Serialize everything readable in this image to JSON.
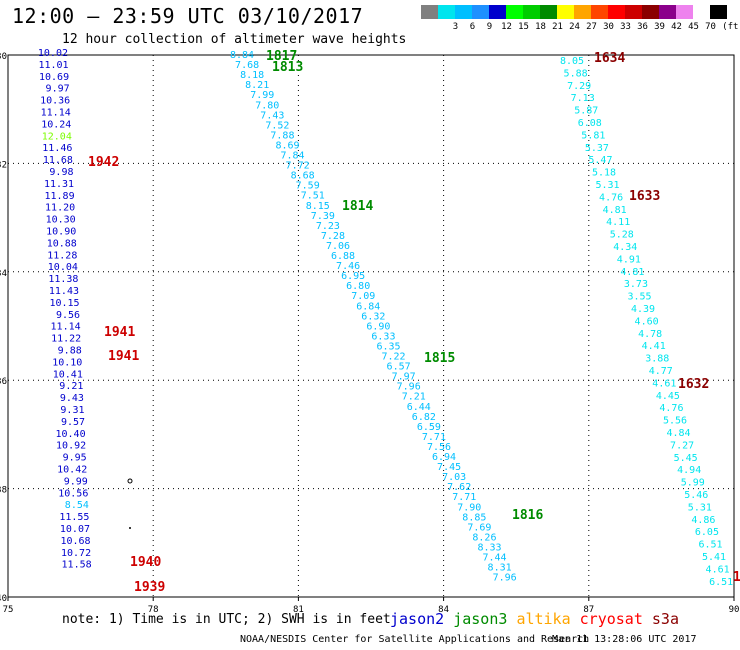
{
  "title": "12:00 – 23:59 UTC 03/10/2017",
  "subtitle": "12 hour collection of altimeter wave heights",
  "scale": {
    "unit": "(ft)",
    "colors": [
      "#808080",
      "#00e5ee",
      "#00bfff",
      "#1e90ff",
      "#0000cd",
      "#00ff00",
      "#00cd00",
      "#008b00",
      "#ffff00",
      "#ffa500",
      "#ff4500",
      "#ff0000",
      "#cd0000",
      "#8b0000",
      "#8b008b",
      "#ee82ee",
      "#ffffff",
      "#000000"
    ],
    "labels": [
      "",
      "3",
      "6",
      "9",
      "12",
      "15",
      "18",
      "21",
      "24",
      "27",
      "30",
      "33",
      "36",
      "39",
      "42",
      "45",
      "70"
    ]
  },
  "chart_data": {
    "type": "scatter",
    "xlim": [
      75,
      90
    ],
    "ylim": [
      -40,
      -30
    ],
    "x_ticks": [
      "75",
      "78",
      "81",
      "84",
      "87",
      "90"
    ],
    "y_ticks": [
      "-30",
      "-32",
      "-34",
      "-36",
      "-38",
      "-40"
    ],
    "grid": true,
    "series": [
      {
        "name": "jason2",
        "color": "#0000cd",
        "pass_labels": [],
        "points": [
          {
            "lon": 75.9,
            "lat": -30.1,
            "v": "10.02",
            "c": "#0000cd"
          },
          {
            "lon": 75.9,
            "lat": -30.3,
            "v": "11.01",
            "c": "#0000cd"
          },
          {
            "lon": 75.9,
            "lat": -30.5,
            "v": "10.69",
            "c": "#0000cd"
          },
          {
            "lon": 76.0,
            "lat": -30.7,
            "v": "9.97",
            "c": "#0000cd"
          },
          {
            "lon": 76.0,
            "lat": -30.9,
            "v": "10.36",
            "c": "#0000cd"
          },
          {
            "lon": 76.0,
            "lat": -31.1,
            "v": "11.14",
            "c": "#0000cd"
          },
          {
            "lon": 76.0,
            "lat": -31.3,
            "v": "10.24",
            "c": "#0000cd"
          },
          {
            "lon": 76.0,
            "lat": -31.5,
            "v": "12.04",
            "c": "#7cfc00"
          },
          {
            "lon": 76.1,
            "lat": -31.7,
            "v": "11.46",
            "c": "#0000cd"
          },
          {
            "lon": 76.1,
            "lat": -31.9,
            "v": "11.68",
            "c": "#0000cd"
          },
          {
            "lon": 76.1,
            "lat": -32.1,
            "v": "9.98",
            "c": "#0000cd"
          },
          {
            "lon": 76.1,
            "lat": -32.3,
            "v": "11.31",
            "c": "#0000cd"
          },
          {
            "lon": 76.1,
            "lat": -32.5,
            "v": "11.89",
            "c": "#0000cd"
          },
          {
            "lon": 76.2,
            "lat": -32.7,
            "v": "11.20",
            "c": "#0000cd"
          },
          {
            "lon": 76.2,
            "lat": -32.9,
            "v": "10.30",
            "c": "#0000cd"
          },
          {
            "lon": 76.2,
            "lat": -33.1,
            "v": "10.90",
            "c": "#0000cd"
          },
          {
            "lon": 76.2,
            "lat": -33.3,
            "v": "10.88",
            "c": "#0000cd"
          },
          {
            "lon": 76.2,
            "lat": -33.5,
            "v": "11.28",
            "c": "#0000cd"
          },
          {
            "lon": 76.3,
            "lat": -33.7,
            "v": "10.04",
            "c": "#0000cd"
          },
          {
            "lon": 76.3,
            "lat": -33.9,
            "v": "11.38",
            "c": "#0000cd"
          },
          {
            "lon": 76.3,
            "lat": -34.1,
            "v": "11.43",
            "c": "#0000cd"
          },
          {
            "lon": 76.3,
            "lat": -34.3,
            "v": "10.15",
            "c": "#0000cd"
          },
          {
            "lon": 76.3,
            "lat": -34.5,
            "v": "9.56",
            "c": "#0000cd"
          },
          {
            "lon": 76.4,
            "lat": -34.7,
            "v": "11.14",
            "c": "#0000cd"
          },
          {
            "lon": 76.4,
            "lat": -34.9,
            "v": "11.22",
            "c": "#0000cd"
          },
          {
            "lon": 76.4,
            "lat": -35.1,
            "v": "9.88",
            "c": "#0000cd"
          },
          {
            "lon": 76.4,
            "lat": -35.3,
            "v": "10.10",
            "c": "#0000cd"
          },
          {
            "lon": 76.4,
            "lat": -35.5,
            "v": "10.41",
            "c": "#0000cd"
          },
          {
            "lon": 76.5,
            "lat": -35.7,
            "v": "9.21",
            "c": "#0000cd"
          },
          {
            "lon": 76.5,
            "lat": -35.9,
            "v": "9.43",
            "c": "#0000cd"
          },
          {
            "lon": 76.5,
            "lat": -36.1,
            "v": "9.31",
            "c": "#0000cd"
          },
          {
            "lon": 76.5,
            "lat": -36.3,
            "v": "9.57",
            "c": "#0000cd"
          },
          {
            "lon": 76.5,
            "lat": -36.5,
            "v": "10.40",
            "c": "#0000cd"
          },
          {
            "lon": 76.6,
            "lat": -36.7,
            "v": "10.92",
            "c": "#0000cd"
          },
          {
            "lon": 76.6,
            "lat": -36.9,
            "v": "9.95",
            "c": "#0000cd"
          },
          {
            "lon": 76.6,
            "lat": -37.1,
            "v": "10.42",
            "c": "#0000cd"
          },
          {
            "lon": 76.6,
            "lat": -37.3,
            "v": "9.99",
            "c": "#0000cd"
          },
          {
            "lon": 76.6,
            "lat": -37.5,
            "v": "10.56",
            "c": "#0000cd"
          },
          {
            "lon": 76.7,
            "lat": -37.7,
            "v": "8.54",
            "c": "#00bfff"
          },
          {
            "lon": 76.7,
            "lat": -37.9,
            "v": "11.55",
            "c": "#0000cd"
          },
          {
            "lon": 76.7,
            "lat": -38.1,
            "v": "10.07",
            "c": "#0000cd"
          },
          {
            "lon": 76.7,
            "lat": -38.3,
            "v": "10.68",
            "c": "#0000cd"
          },
          {
            "lon": 76.7,
            "lat": -38.5,
            "v": "10.72",
            "c": "#0000cd"
          },
          {
            "lon": 76.8,
            "lat": -38.7,
            "v": "11.58",
            "c": "#0000cd"
          }
        ]
      },
      {
        "name": "jason3",
        "color": "#008b00",
        "pass_labels": [],
        "points": []
      },
      {
        "name": "altika",
        "color": "#ffa500",
        "pass_labels": [],
        "points": []
      },
      {
        "name": "cryosat",
        "color": "#ff0000",
        "pass_labels": [],
        "points": []
      },
      {
        "name": "s3a",
        "color": "#8b0000",
        "pass_labels": [],
        "points": []
      }
    ],
    "tracks": [
      {
        "color": "#00bfff",
        "labels": [
          "8.84",
          "7.68",
          "8.18",
          "8.21",
          "7.99",
          "7.80",
          "7.43",
          "7.52",
          "7.88",
          "8.69",
          "7.84",
          "7.72",
          "8.68",
          "7.59",
          "7.51",
          "8.15",
          "7.39",
          "7.23",
          "7.28",
          "7.06",
          "6.88",
          "7.46",
          "6.95",
          "6.80",
          "7.09",
          "6.84",
          "6.32",
          "6.90",
          "6.33",
          "6.35",
          "7.22",
          "6.57",
          "7.97",
          "7.96",
          "7.21",
          "6.44",
          "6.82",
          "6.59",
          "7.71",
          "7.56",
          "6.94",
          "7.45",
          "7.03",
          "7.62",
          "7.71",
          "7.90",
          "8.85",
          "7.69",
          "8.26",
          "8.33",
          "7.44",
          "8.31",
          "7.96"
        ]
      },
      {
        "color": "#00e5ee",
        "labels": [
          "8.05",
          "5.88",
          "7.29",
          "7.13",
          "5.87",
          "6.08",
          "5.81",
          "5.37",
          "5.47",
          "5.18",
          "5.31",
          "4.76",
          "4.81",
          "4.11",
          "5.28",
          "4.34",
          "4.91",
          "4.81",
          "3.73",
          "3.55",
          "4.39",
          "4.60",
          "4.78",
          "4.41",
          "3.88",
          "4.77",
          "4.61",
          "4.45",
          "4.76",
          "5.56",
          "4.84",
          "7.27",
          "5.45",
          "4.94",
          "5.99",
          "5.46",
          "5.31",
          "4.86",
          "6.05",
          "6.51",
          "5.41",
          "4.61",
          "6.51"
        ]
      }
    ],
    "pass_labels": [
      {
        "text": "1817",
        "color": "#008b00"
      },
      {
        "text": "1813",
        "color": "#008b00"
      },
      {
        "text": "1814",
        "color": "#008b00"
      },
      {
        "text": "1815",
        "color": "#008b00"
      },
      {
        "text": "1816",
        "color": "#008b00"
      },
      {
        "text": "1942",
        "color": "#cd0000"
      },
      {
        "text": "1941",
        "color": "#cd0000"
      },
      {
        "text": "1941",
        "color": "#cd0000"
      },
      {
        "text": "1940",
        "color": "#cd0000"
      },
      {
        "text": "1939",
        "color": "#cd0000"
      },
      {
        "text": "1634",
        "color": "#8b0000"
      },
      {
        "text": "1633",
        "color": "#8b0000"
      },
      {
        "text": "1632",
        "color": "#8b0000"
      }
    ]
  },
  "footer": {
    "note": "note: 1) Time is in UTC; 2) SWH is in feet",
    "legend": [
      {
        "name": "jason2",
        "color": "#0000cd"
      },
      {
        "name": "jason3",
        "color": "#008b00"
      },
      {
        "name": "altika",
        "color": "#ffa500"
      },
      {
        "name": "cryosat",
        "color": "#ff0000"
      },
      {
        "name": "s3a",
        "color": "#8b0000"
      }
    ],
    "credit": "NOAA/NESDIS Center for Satellite Applications and Research",
    "stamp": "Mar 11 13:28:06 UTC 2017"
  }
}
